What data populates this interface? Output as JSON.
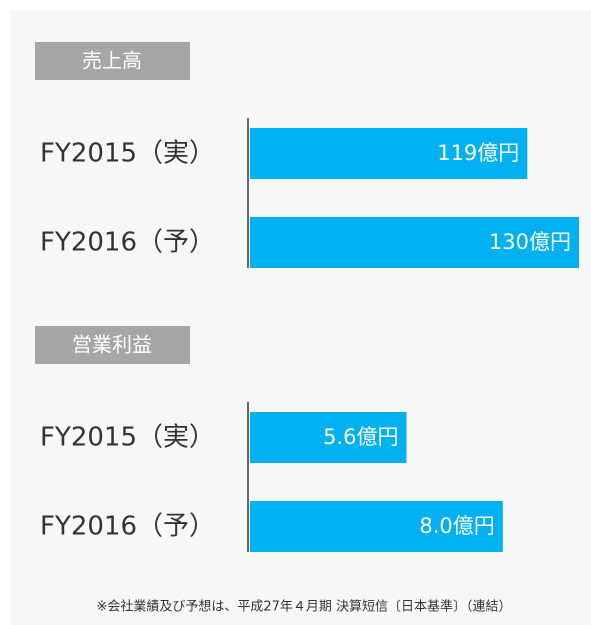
{
  "chart_data": [
    {
      "type": "bar",
      "title": "売上高",
      "categories": [
        "FY2015（実）",
        "FY2016（予）"
      ],
      "values": [
        119,
        130
      ],
      "value_labels": [
        "119億円",
        "130億円"
      ],
      "color": "#00b0f0",
      "xlim": [
        60,
        130
      ]
    },
    {
      "type": "bar",
      "title": "営業利益",
      "categories": [
        "FY2015（実）",
        "FY2016（予）"
      ],
      "values": [
        5.6,
        8.0
      ],
      "value_labels": [
        "5.6億円",
        "8.0億円"
      ],
      "color": "#00b0f0",
      "xlim": [
        1.7,
        9.9
      ]
    }
  ],
  "footnote": "※会社業績及び予想は、平成27年４月期 決算短信〔日本基準〕（連結）"
}
